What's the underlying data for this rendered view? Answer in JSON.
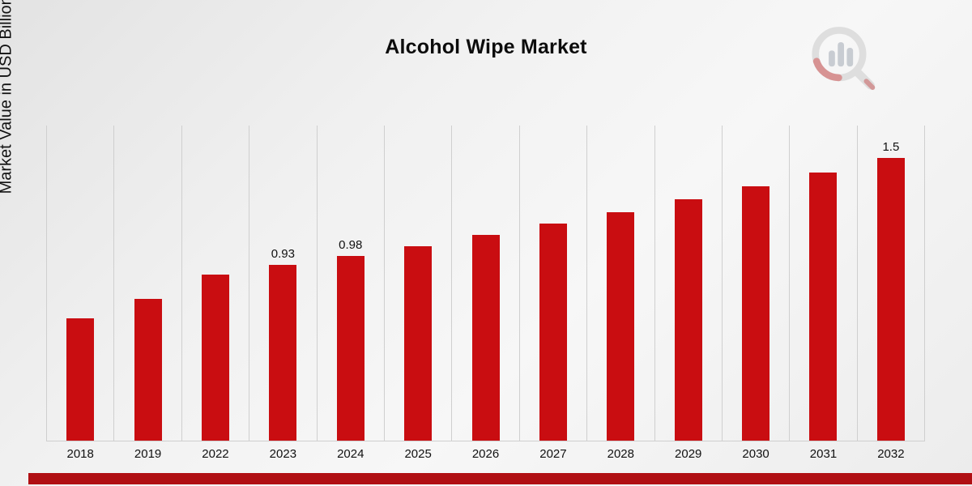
{
  "header": {
    "title": "Alcohol Wipe Market"
  },
  "chart_data": {
    "type": "bar",
    "title": "Alcohol Wipe Market",
    "xlabel": "",
    "ylabel": "Market Value in USD Billion",
    "categories": [
      "2018",
      "2019",
      "2022",
      "2023",
      "2024",
      "2025",
      "2026",
      "2027",
      "2028",
      "2029",
      "2030",
      "2031",
      "2032"
    ],
    "values": [
      0.65,
      0.75,
      0.88,
      0.93,
      0.98,
      1.03,
      1.09,
      1.15,
      1.21,
      1.28,
      1.35,
      1.42,
      1.5
    ],
    "data_labels": [
      "",
      "",
      "",
      "0.93",
      "0.98",
      "",
      "",
      "",
      "",
      "",
      "",
      "",
      "1.5"
    ],
    "ylim": [
      0,
      1.67
    ],
    "grid": "vertical-only",
    "legend": "none",
    "bar_color": "#c90d11",
    "grid_color": "#cfcfcf"
  },
  "footer": {
    "accent_color": "#b00f13"
  },
  "branding": {
    "logo": "magnifier-bar-chart-logo"
  }
}
